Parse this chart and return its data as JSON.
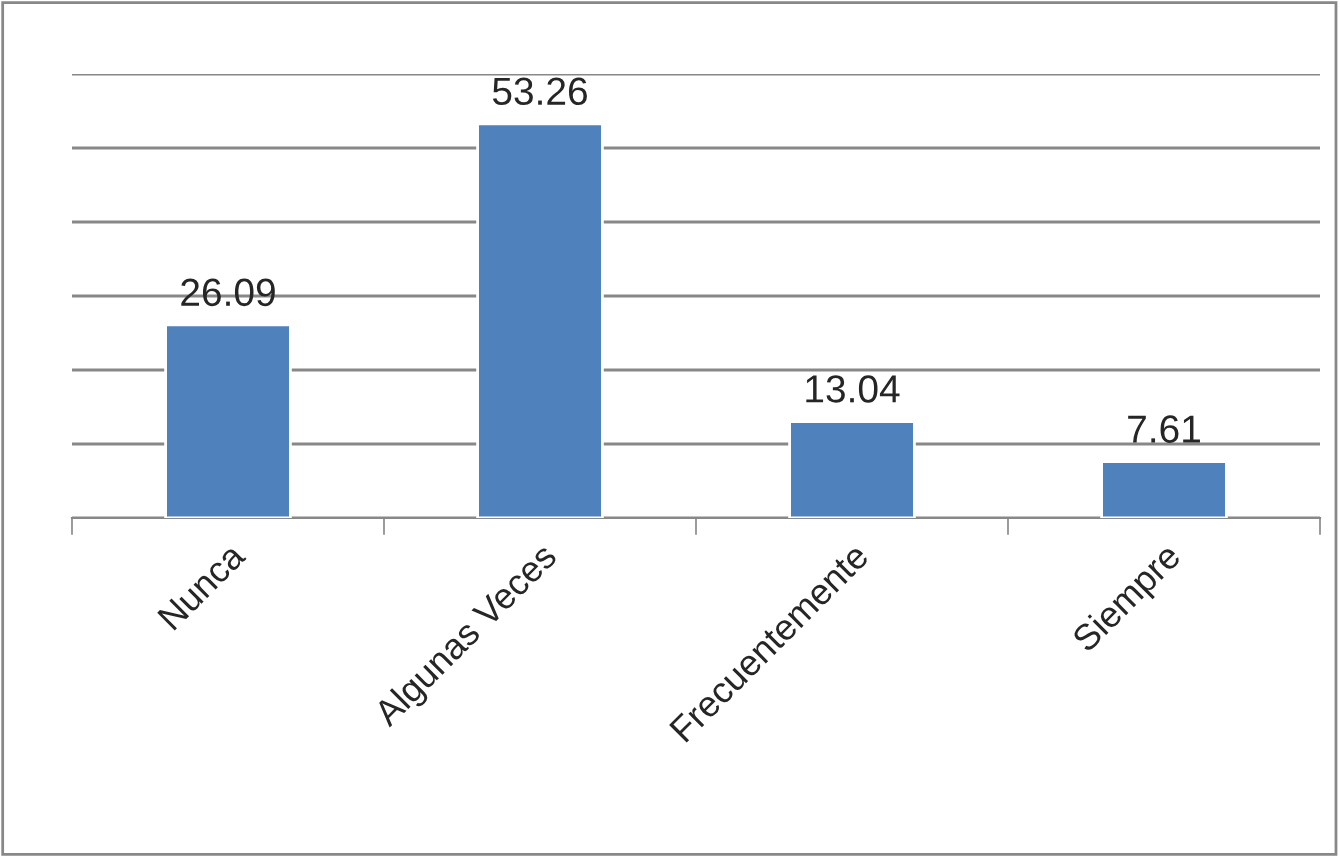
{
  "chart_data": {
    "type": "bar",
    "categories": [
      "Nunca",
      "Algunas Veces",
      "Frecuentemente",
      "Siempre"
    ],
    "values": [
      26.09,
      53.26,
      13.04,
      7.61
    ],
    "color": "#4f81bd",
    "ylim": [
      0,
      60
    ],
    "yticks": [
      {
        "value": 0,
        "label": null
      },
      {
        "value": 10,
        "label": null
      },
      {
        "value": 20,
        "label": null
      },
      {
        "value": 30,
        "label": null
      },
      {
        "value": 40,
        "label": null
      },
      {
        "value": 50,
        "label": null
      },
      {
        "value": 60,
        "label": null
      }
    ],
    "tick_labels": "x",
    "grid": "y",
    "data_labels": true
  }
}
